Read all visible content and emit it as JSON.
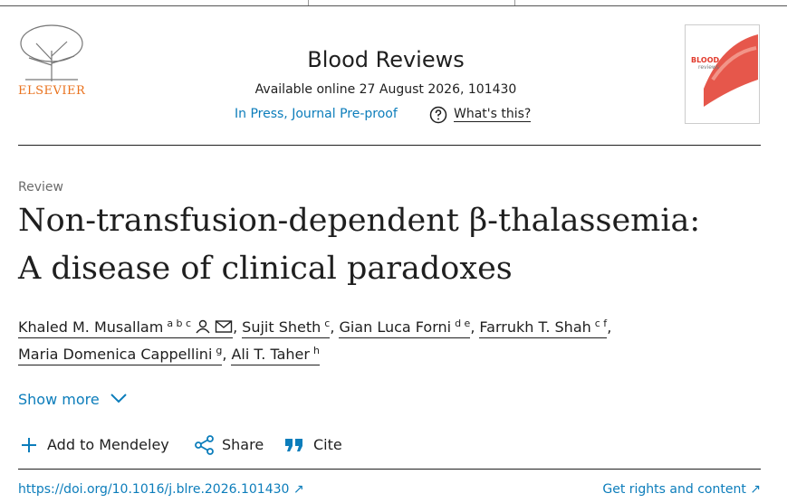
{
  "header": {
    "publisher": "ELSEVIER",
    "journal": "Blood Reviews",
    "available": "Available online 27 August 2026, 101430",
    "status": "In Press, Journal Pre-proof",
    "whats_this": "What's this?",
    "cover_title": "BLOOD",
    "cover_subtitle": "reviews"
  },
  "article": {
    "type": "Review",
    "title_lines": [
      "Non-transfusion-dependent β-thalassemia:",
      "A disease of clinical paradoxes"
    ],
    "authors": [
      {
        "name": "Khaled M. Musallam",
        "sup": "a b c"
      },
      {
        "name": "Sujit Sheth",
        "sup": "c"
      },
      {
        "name": "Gian Luca Forni",
        "sup": "d e"
      },
      {
        "name": "Farrukh T. Shah",
        "sup": "c f"
      },
      {
        "name": "Maria Domenica Cappellini",
        "sup": "g"
      },
      {
        "name": "Ali T. Taher",
        "sup": "h"
      }
    ],
    "separator": ",",
    "show_more": "Show more",
    "actions": [
      "Add to Mendeley",
      "Share",
      "Cite"
    ],
    "doi": "https://doi.org/10.1016/j.blre.2026.101430",
    "rights": "Get rights and content"
  }
}
